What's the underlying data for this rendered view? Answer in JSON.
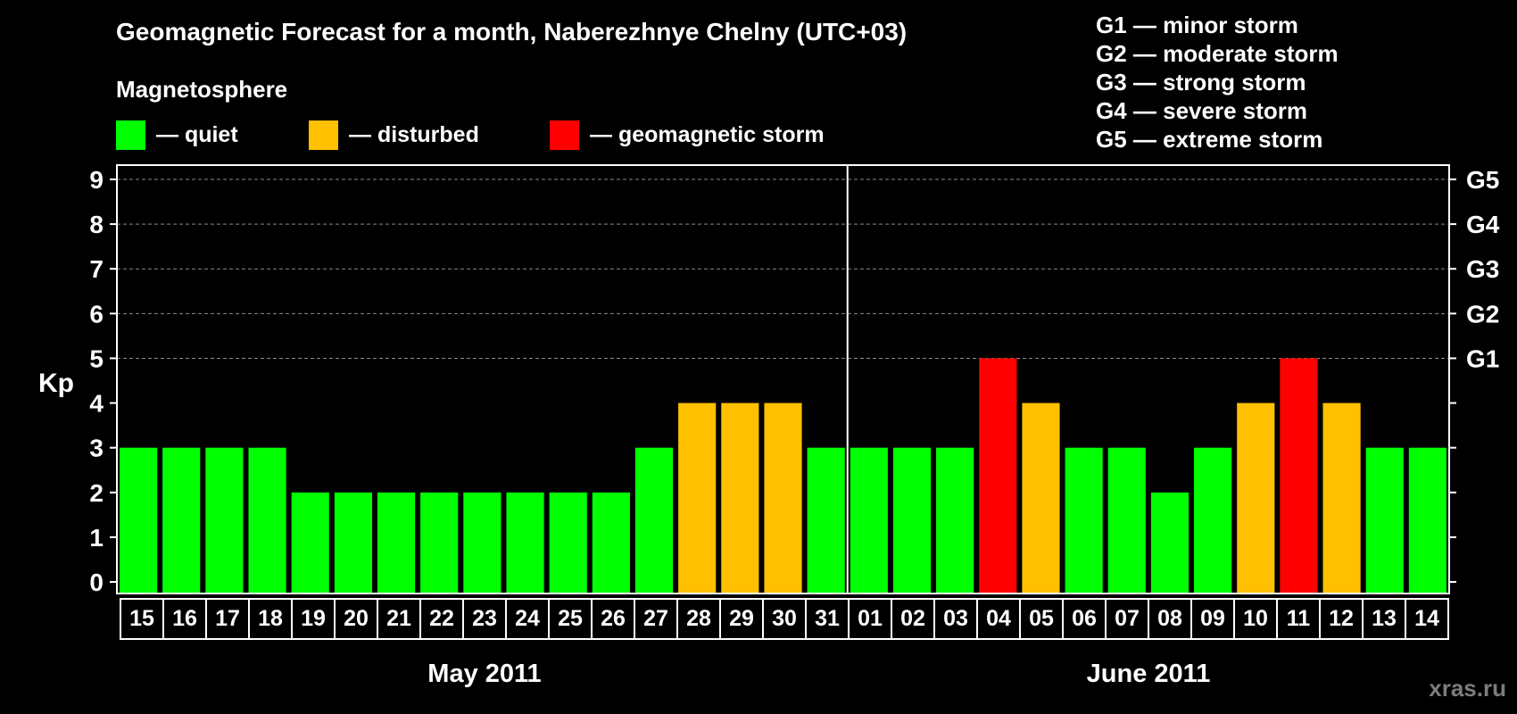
{
  "header": {
    "title": "Geomagnetic Forecast for a month, Naberezhnye Chelny (UTC+03)",
    "subtitle": "Magnetosphere"
  },
  "legend": [
    {
      "label": "— quiet",
      "color": "#00ff00"
    },
    {
      "label": "— disturbed",
      "color": "#ffc000"
    },
    {
      "label": "— geomagnetic storm",
      "color": "#ff0000"
    }
  ],
  "storm_scale": [
    "G1 — minor storm",
    "G2 — moderate storm",
    "G3 — strong storm",
    "G4 — severe storm",
    "G5 — extreme storm"
  ],
  "watermark": "xras.ru",
  "colors": {
    "quiet": "#00ff00",
    "disturbed": "#ffc000",
    "storm": "#ff0000",
    "background": "#000000"
  },
  "chart_data": {
    "type": "bar",
    "ylabel": "Kp",
    "ylim": [
      0,
      9
    ],
    "yticks": [
      0,
      1,
      2,
      3,
      4,
      5,
      6,
      7,
      8,
      9
    ],
    "right_axis_labels": [
      {
        "kp": 5,
        "label": "G1"
      },
      {
        "kp": 6,
        "label": "G2"
      },
      {
        "kp": 7,
        "label": "G3"
      },
      {
        "kp": 8,
        "label": "G4"
      },
      {
        "kp": 9,
        "label": "G5"
      }
    ],
    "grid": "dashed horizontal at Kp 5-9",
    "categories": [
      "15",
      "16",
      "17",
      "18",
      "19",
      "20",
      "21",
      "22",
      "23",
      "24",
      "25",
      "26",
      "27",
      "28",
      "29",
      "30",
      "31",
      "01",
      "02",
      "03",
      "04",
      "05",
      "06",
      "07",
      "08",
      "09",
      "10",
      "11",
      "12",
      "13",
      "14"
    ],
    "values": [
      3,
      3,
      3,
      3,
      2,
      2,
      2,
      2,
      2,
      2,
      2,
      2,
      3,
      4,
      4,
      4,
      3,
      3,
      3,
      3,
      5,
      4,
      3,
      3,
      2,
      3,
      4,
      5,
      4,
      3,
      3
    ],
    "groups": [
      {
        "label": "May 2011",
        "count": 17
      },
      {
        "label": "June 2011",
        "count": 14
      }
    ]
  }
}
